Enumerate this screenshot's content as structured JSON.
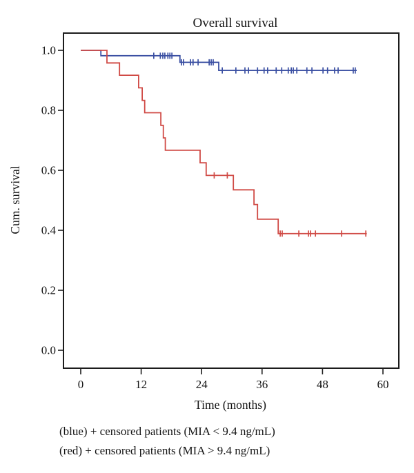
{
  "chart_data": {
    "type": "line",
    "variant": "kaplan_meier_step",
    "title": "Overall survival",
    "xlabel": "Time (months)",
    "ylabel": "Cum. survival",
    "xlim": [
      0,
      63
    ],
    "ylim": [
      0,
      1.06
    ],
    "grid": false,
    "legend_position": "below-figure-caption",
    "x_ticks": [
      {
        "label": "0",
        "value": 0
      },
      {
        "label": "12",
        "value": 12
      },
      {
        "label": "24",
        "value": 24
      },
      {
        "label": "36",
        "value": 36
      },
      {
        "label": "48",
        "value": 48
      },
      {
        "label": "60",
        "value": 60
      }
    ],
    "y_ticks": [
      {
        "label": "1.0",
        "value": 1.0
      },
      {
        "label": "0.8",
        "value": 0.8
      },
      {
        "label": "0.6",
        "value": 0.6
      },
      {
        "label": "0.4",
        "value": 0.4
      },
      {
        "label": "0.2",
        "value": 0.2
      },
      {
        "label": "0.0",
        "value": 0.0
      }
    ],
    "series": [
      {
        "key": "blue",
        "name": "MIA < 9.4 ng/mL",
        "color": "#3a4fa2",
        "points": [
          [
            0,
            1.0
          ],
          [
            4.0,
            0.982
          ],
          [
            19.7,
            0.96
          ],
          [
            27.4,
            0.933
          ]
        ],
        "end": 54.8,
        "censors": [
          [
            14.5,
            0.982
          ],
          [
            15.8,
            0.982
          ],
          [
            16.3,
            0.982
          ],
          [
            16.7,
            0.982
          ],
          [
            17.3,
            0.982
          ],
          [
            17.7,
            0.982
          ],
          [
            18.1,
            0.982
          ],
          [
            20.0,
            0.96
          ],
          [
            20.4,
            0.96
          ],
          [
            21.8,
            0.96
          ],
          [
            22.3,
            0.96
          ],
          [
            23.3,
            0.96
          ],
          [
            25.5,
            0.96
          ],
          [
            25.9,
            0.96
          ],
          [
            26.3,
            0.96
          ],
          [
            28.1,
            0.933
          ],
          [
            30.8,
            0.933
          ],
          [
            32.6,
            0.933
          ],
          [
            33.3,
            0.933
          ],
          [
            35.1,
            0.933
          ],
          [
            36.4,
            0.933
          ],
          [
            37.1,
            0.933
          ],
          [
            38.8,
            0.933
          ],
          [
            39.9,
            0.933
          ],
          [
            41.2,
            0.933
          ],
          [
            41.8,
            0.933
          ],
          [
            42.2,
            0.933
          ],
          [
            42.9,
            0.933
          ],
          [
            44.9,
            0.933
          ],
          [
            45.9,
            0.933
          ],
          [
            48.1,
            0.933
          ],
          [
            49.0,
            0.933
          ],
          [
            50.4,
            0.933
          ],
          [
            51.1,
            0.933
          ],
          [
            54.1,
            0.933
          ],
          [
            54.5,
            0.933
          ]
        ]
      },
      {
        "key": "red",
        "name": "MIA > 9.4 ng/mL",
        "color": "#d04a45",
        "points": [
          [
            0,
            1.0
          ],
          [
            5.2,
            0.958
          ],
          [
            7.7,
            0.917
          ],
          [
            11.5,
            0.875
          ],
          [
            12.2,
            0.833
          ],
          [
            12.7,
            0.792
          ],
          [
            15.9,
            0.75
          ],
          [
            16.4,
            0.708
          ],
          [
            16.8,
            0.667
          ],
          [
            23.7,
            0.625
          ],
          [
            24.9,
            0.583
          ],
          [
            30.3,
            0.535
          ],
          [
            34.4,
            0.486
          ],
          [
            35.1,
            0.437
          ],
          [
            39.2,
            0.389
          ]
        ],
        "end": 56.8,
        "censors": [
          [
            26.5,
            0.583
          ],
          [
            29.1,
            0.583
          ],
          [
            39.6,
            0.389
          ],
          [
            40.0,
            0.389
          ],
          [
            43.3,
            0.389
          ],
          [
            45.2,
            0.389
          ],
          [
            45.6,
            0.389
          ],
          [
            46.6,
            0.389
          ],
          [
            51.8,
            0.389
          ],
          [
            56.6,
            0.389
          ]
        ]
      }
    ]
  },
  "caption": {
    "blue": "(blue) + censored patients (MIA < 9.4 ng/mL)",
    "red": "(red) + censored patients (MIA > 9.4 ng/mL)"
  }
}
